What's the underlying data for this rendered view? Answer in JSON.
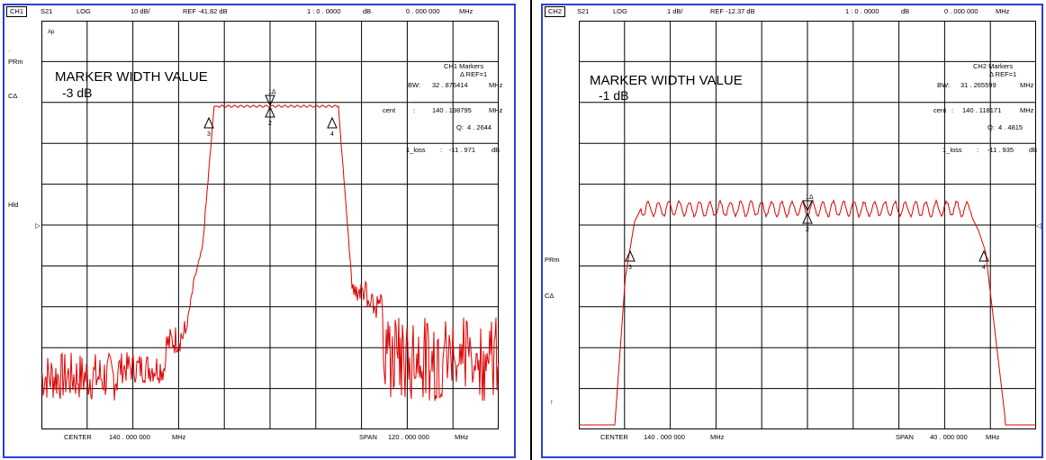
{
  "colors": {
    "frame": "#2a3fd4",
    "trace": "#e00000",
    "grid": "#000000"
  },
  "left": {
    "channel": "CH1",
    "param": "S21",
    "format": "LOG",
    "scale": "10 dB/",
    "ref": "REF -41.82 dB",
    "ratio": "1 : 0 . 0000",
    "ratio_unit": "dB",
    "freq": "0 . 000   000",
    "freq_unit": "MHz",
    "side_ap": "Ap",
    "side_prm": "PRm",
    "side_c": "CΔ",
    "side_hld": "Hld",
    "marker_title": "MARKER WIDTH VALUE",
    "marker_value": "-3 dB",
    "markers_title": "CH1  Markers",
    "markers_ref": "Δ REF=1",
    "bw_label": "BW:",
    "bw_value": "32 . 876414",
    "bw_unit": "MHz",
    "cent_label": "cent",
    "cent_value": "140 . 198795",
    "cent_unit": "MHz",
    "q_label": "Q:",
    "q_value": "4 . 2644",
    "loss_label": "1_loss",
    "loss_value": "-11 . 971",
    "loss_unit": "dB",
    "center_label": "CENTER",
    "center_value": "140 . 000   000",
    "center_unit": "MHz",
    "span_label": "SPAN",
    "span_value": "120 . 000   000",
    "span_unit": "MHz",
    "marker_labels": [
      "1Δ",
      "2",
      "3",
      "4"
    ]
  },
  "right": {
    "channel": "CH2",
    "param": "S21",
    "format": "LOG",
    "scale": "1 dB/",
    "ref": "REF -12.37 dB",
    "ratio": "1 : 0 . 0000",
    "ratio_unit": "dB",
    "freq": "0 . 000   000",
    "freq_unit": "MHz",
    "side_prm": "PRm",
    "side_c": "CΔ",
    "side_arrow": "↑",
    "marker_title": "MARKER WIDTH VALUE",
    "marker_value": "-1 dB",
    "markers_title": "CH2  Markers",
    "markers_ref": "Δ REF=1",
    "bw_label": "BW:",
    "bw_value": "31 . 265599",
    "bw_unit": "MHz",
    "cent_label": "cent",
    "cent_value": "140 . 118171",
    "cent_unit": "MHz",
    "q_label": "Q:",
    "q_value": "4 . 4815",
    "loss_label": "1_loss",
    "loss_value": "-11 . 935",
    "loss_unit": "dB",
    "center_label": "CENTER",
    "center_value": "140 . 000   000",
    "center_unit": "MHz",
    "span_label": "SPAN",
    "span_value": "40 . 000   000",
    "span_unit": "MHz",
    "marker_labels": [
      "1Δ",
      "2",
      "3",
      "4"
    ]
  }
}
